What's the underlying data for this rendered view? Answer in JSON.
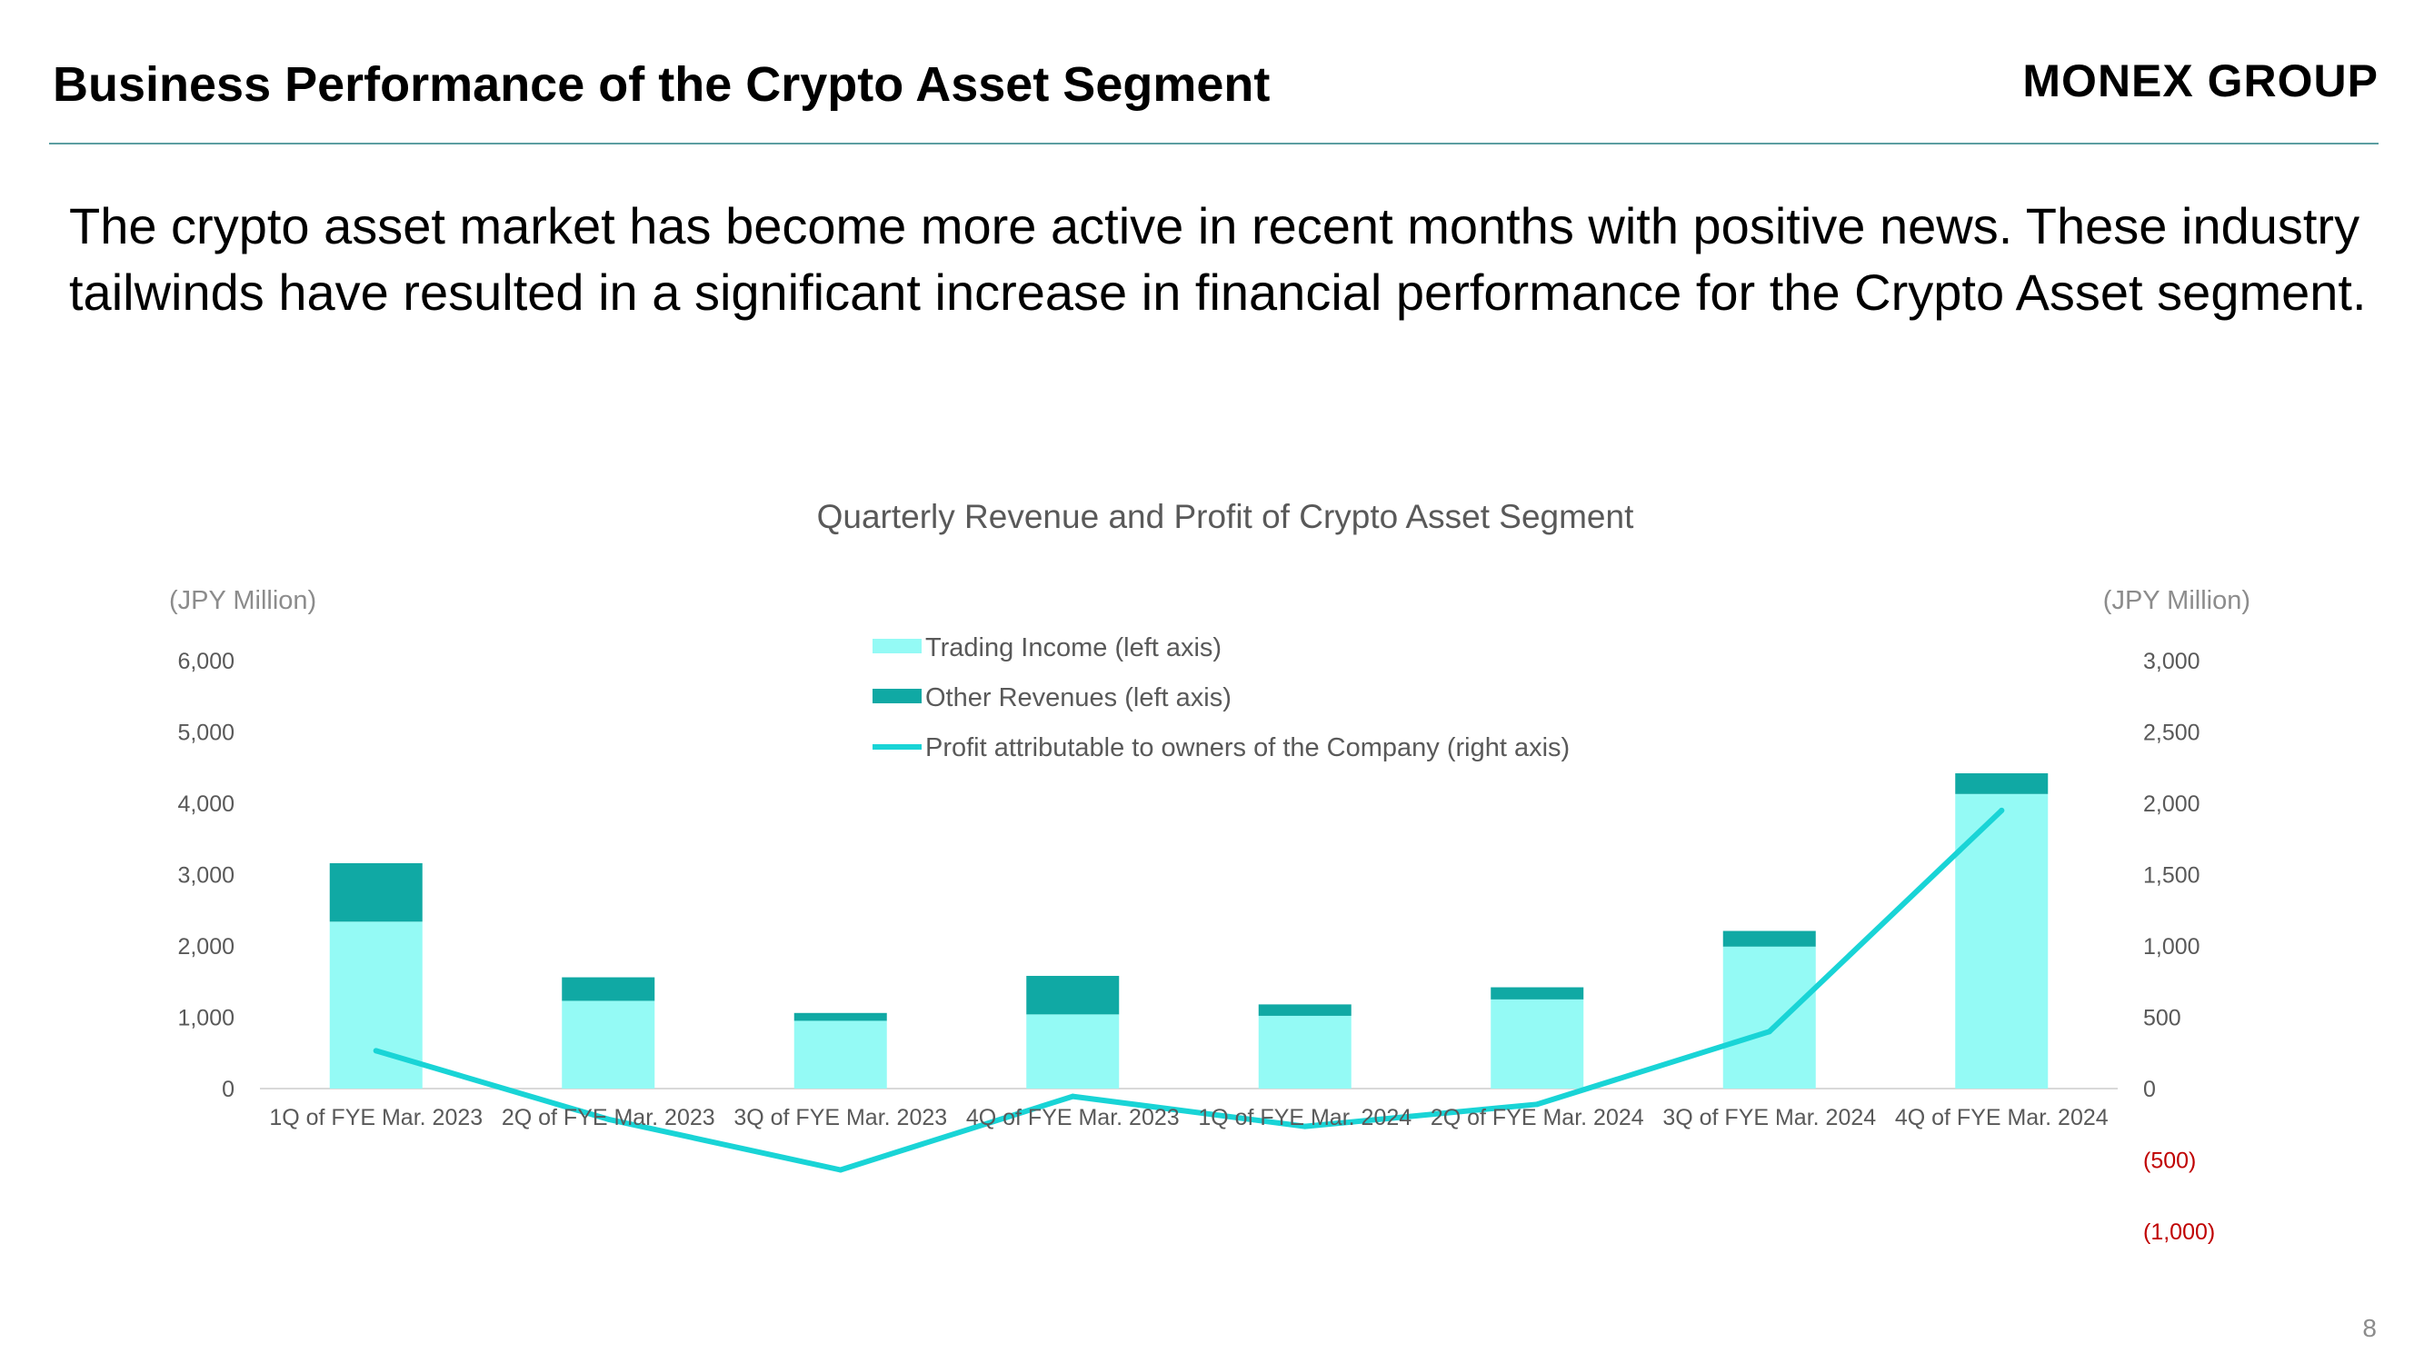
{
  "header": {
    "title": "Business Performance of the Crypto Asset Segment",
    "logo_text": "MONEX GROUP"
  },
  "lead_text": "The crypto asset market has become more active in recent months with positive news. These industry tailwinds have resulted in a significant increase in financial performance for the Crypto Asset segment.",
  "page_number": "8",
  "colors": {
    "trading_income": "#94faf5",
    "other_revenues": "#10a9a4",
    "profit_line": "#19d4d6",
    "axis_text": "#595959",
    "negative_tick": "#c00000",
    "rule": "#5c9ea1"
  },
  "chart_data": {
    "type": "bar",
    "stacked": true,
    "title": "Quarterly Revenue and Profit of Crypto Asset Segment",
    "ylabel_left": "(JPY Million)",
    "ylabel_right": "(JPY Million)",
    "categories": [
      "1Q of FYE Mar. 2023",
      "2Q of FYE Mar. 2023",
      "3Q of FYE Mar. 2023",
      "4Q of FYE Mar. 2023",
      "1Q of FYE Mar. 2024",
      "2Q of FYE Mar. 2024",
      "3Q of FYE Mar. 2024",
      "4Q of FYE Mar. 2024"
    ],
    "ylim_left": [
      0,
      6000
    ],
    "yticks_left": [
      0,
      1000,
      2000,
      3000,
      4000,
      5000,
      6000
    ],
    "ytick_labels_left": [
      "0",
      "1,000",
      "2,000",
      "3,000",
      "4,000",
      "5,000",
      "6,000"
    ],
    "ylim_right": [
      -1000,
      3000
    ],
    "yticks_right": [
      -1000,
      -500,
      0,
      500,
      1000,
      1500,
      2000,
      2500,
      3000
    ],
    "ytick_labels_right": [
      "(1,000)",
      "(500)",
      "0",
      "500",
      "1,000",
      "1,500",
      "2,000",
      "2,500",
      "3,000"
    ],
    "series": [
      {
        "name": "Trading Income (left axis)",
        "type": "bar",
        "axis": "left",
        "values": [
          2340,
          1230,
          950,
          1040,
          1020,
          1250,
          1990,
          4130
        ]
      },
      {
        "name": "Other Revenues (left axis)",
        "type": "bar",
        "axis": "left",
        "values": [
          820,
          330,
          110,
          540,
          160,
          170,
          220,
          290
        ]
      },
      {
        "name": "Profit attributable to owners of the Company (right axis)",
        "type": "line",
        "axis": "right",
        "values": [
          265,
          -215,
          -570,
          -55,
          -265,
          -110,
          400,
          1950
        ]
      }
    ],
    "legend_position": "top-center",
    "grid": false
  }
}
